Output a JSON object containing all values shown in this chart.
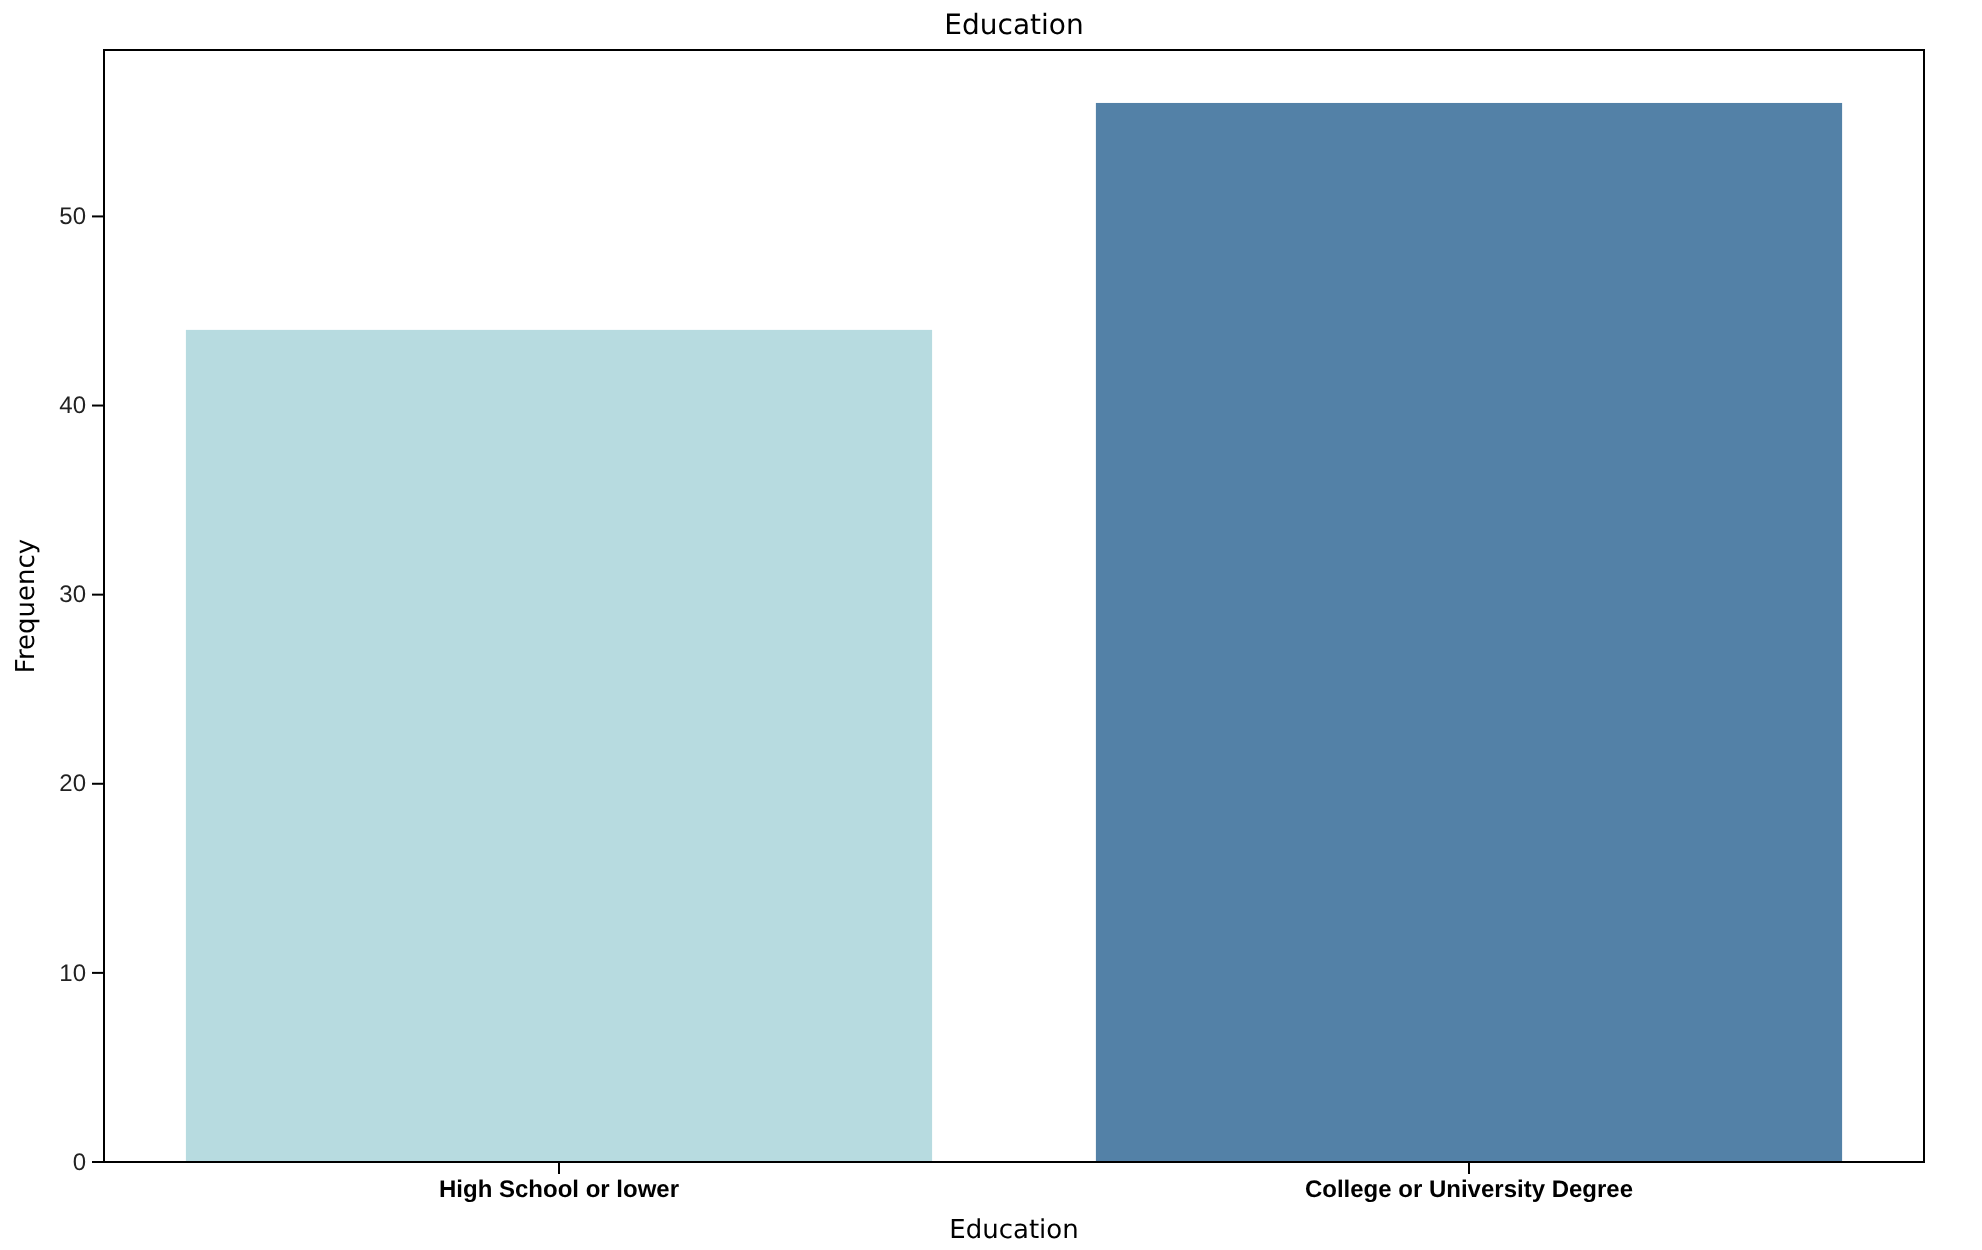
{
  "chart_data": {
    "type": "bar",
    "title": "Education",
    "xlabel": "Education",
    "ylabel": "Frequency",
    "categories": [
      "High School or lower",
      "College or University Degree"
    ],
    "values": [
      44,
      56
    ],
    "colors": [
      "#b7dbe0",
      "#5381a7"
    ],
    "ylim": [
      0,
      58.8
    ],
    "yticks": [
      0,
      10,
      20,
      30,
      40,
      50
    ],
    "grid": false
  }
}
